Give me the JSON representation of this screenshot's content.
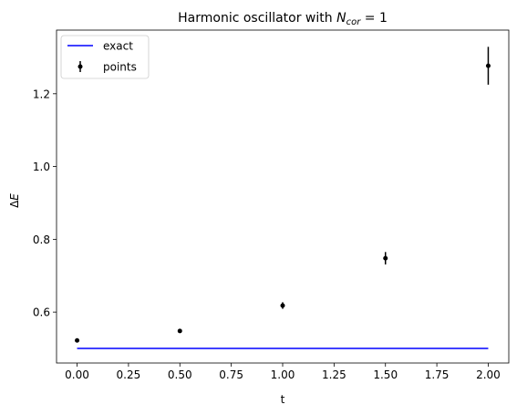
{
  "chart_data": {
    "type": "scatter",
    "title_prefix": "Harmonic oscillator with ",
    "title_math": "N",
    "title_sub": "cor",
    "title_suffix": " = 1",
    "xlabel": "t",
    "ylabel_delta": "Δ",
    "ylabel_var": "E",
    "xlim": [
      -0.1,
      2.1
    ],
    "ylim": [
      0.46,
      1.375
    ],
    "xticks": [
      0.0,
      0.25,
      0.5,
      0.75,
      1.0,
      1.25,
      1.5,
      1.75,
      2.0
    ],
    "xtick_labels": [
      "0.00",
      "0.25",
      "0.50",
      "0.75",
      "1.00",
      "1.25",
      "1.50",
      "1.75",
      "2.00"
    ],
    "yticks": [
      0.6,
      0.8,
      1.0,
      1.2
    ],
    "ytick_labels": [
      "0.6",
      "0.8",
      "1.0",
      "1.2"
    ],
    "legend_position": "top-left",
    "series": [
      {
        "name": "exact",
        "kind": "line",
        "color": "#0000ff",
        "x": [
          0.0,
          2.0
        ],
        "y": [
          0.5,
          0.5
        ]
      },
      {
        "name": "points",
        "kind": "errorbar",
        "color": "#000000",
        "x": [
          0.0,
          0.5,
          1.0,
          1.5,
          2.0
        ],
        "y": [
          0.522,
          0.548,
          0.618,
          0.748,
          1.277
        ],
        "yerr": [
          0.004,
          0.005,
          0.009,
          0.017,
          0.052
        ]
      }
    ]
  }
}
